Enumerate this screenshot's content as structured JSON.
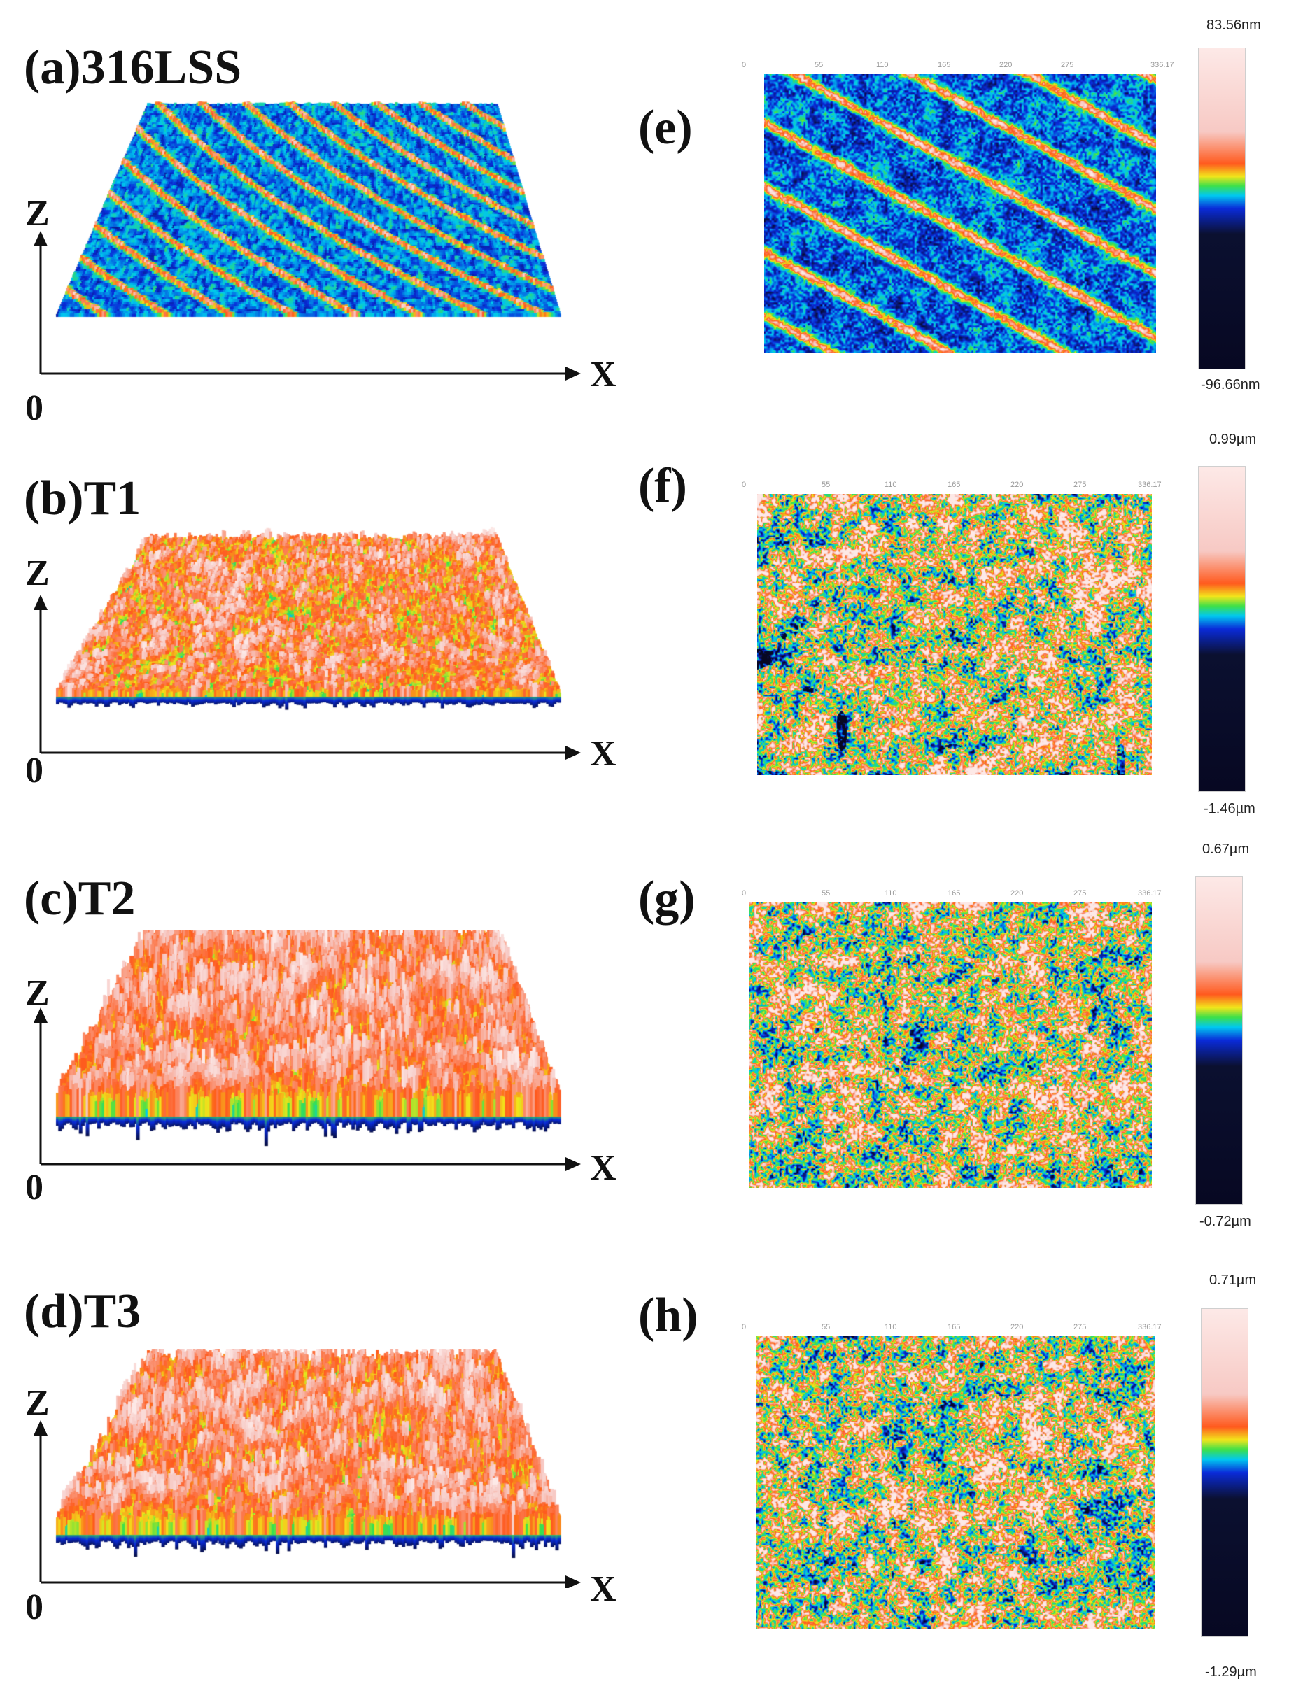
{
  "colors": {
    "deep_low": "#070822",
    "low_blue": "#0a2bd9",
    "mid_cyan": "#00c8f0",
    "mid_green": "#3de04a",
    "mid_yellow": "#f2e51b",
    "orange": "#ff5a1e",
    "peak_pink": "#f7c9c4",
    "top_white": "#fde9e7"
  },
  "axes_common": {
    "z": "Z",
    "x": "X",
    "origin": "0"
  },
  "ruler_ticks": [
    "0",
    "55",
    "110",
    "165",
    "220",
    "275",
    "336.17"
  ],
  "panels": [
    {
      "label": "(a)316LSS",
      "surface": "striped",
      "map_label": "(e)",
      "map": "striped",
      "bar_max": "83.56nm",
      "bar_min": "-96.66nm"
    },
    {
      "label": "(b)T1",
      "surface": "fine",
      "map_label": "(f)",
      "map": "speckled-pits",
      "bar_max": "0.99µm",
      "bar_min": "-1.46µm"
    },
    {
      "label": "(c)T2",
      "surface": "spiky",
      "map_label": "(g)",
      "map": "speckled",
      "bar_max": "0.67µm",
      "bar_min": "-0.72µm"
    },
    {
      "label": "(d)T3",
      "surface": "spiky-mid",
      "map_label": "(h)",
      "map": "speckled",
      "bar_max": "0.71µm",
      "bar_min": "-1.29µm"
    }
  ]
}
